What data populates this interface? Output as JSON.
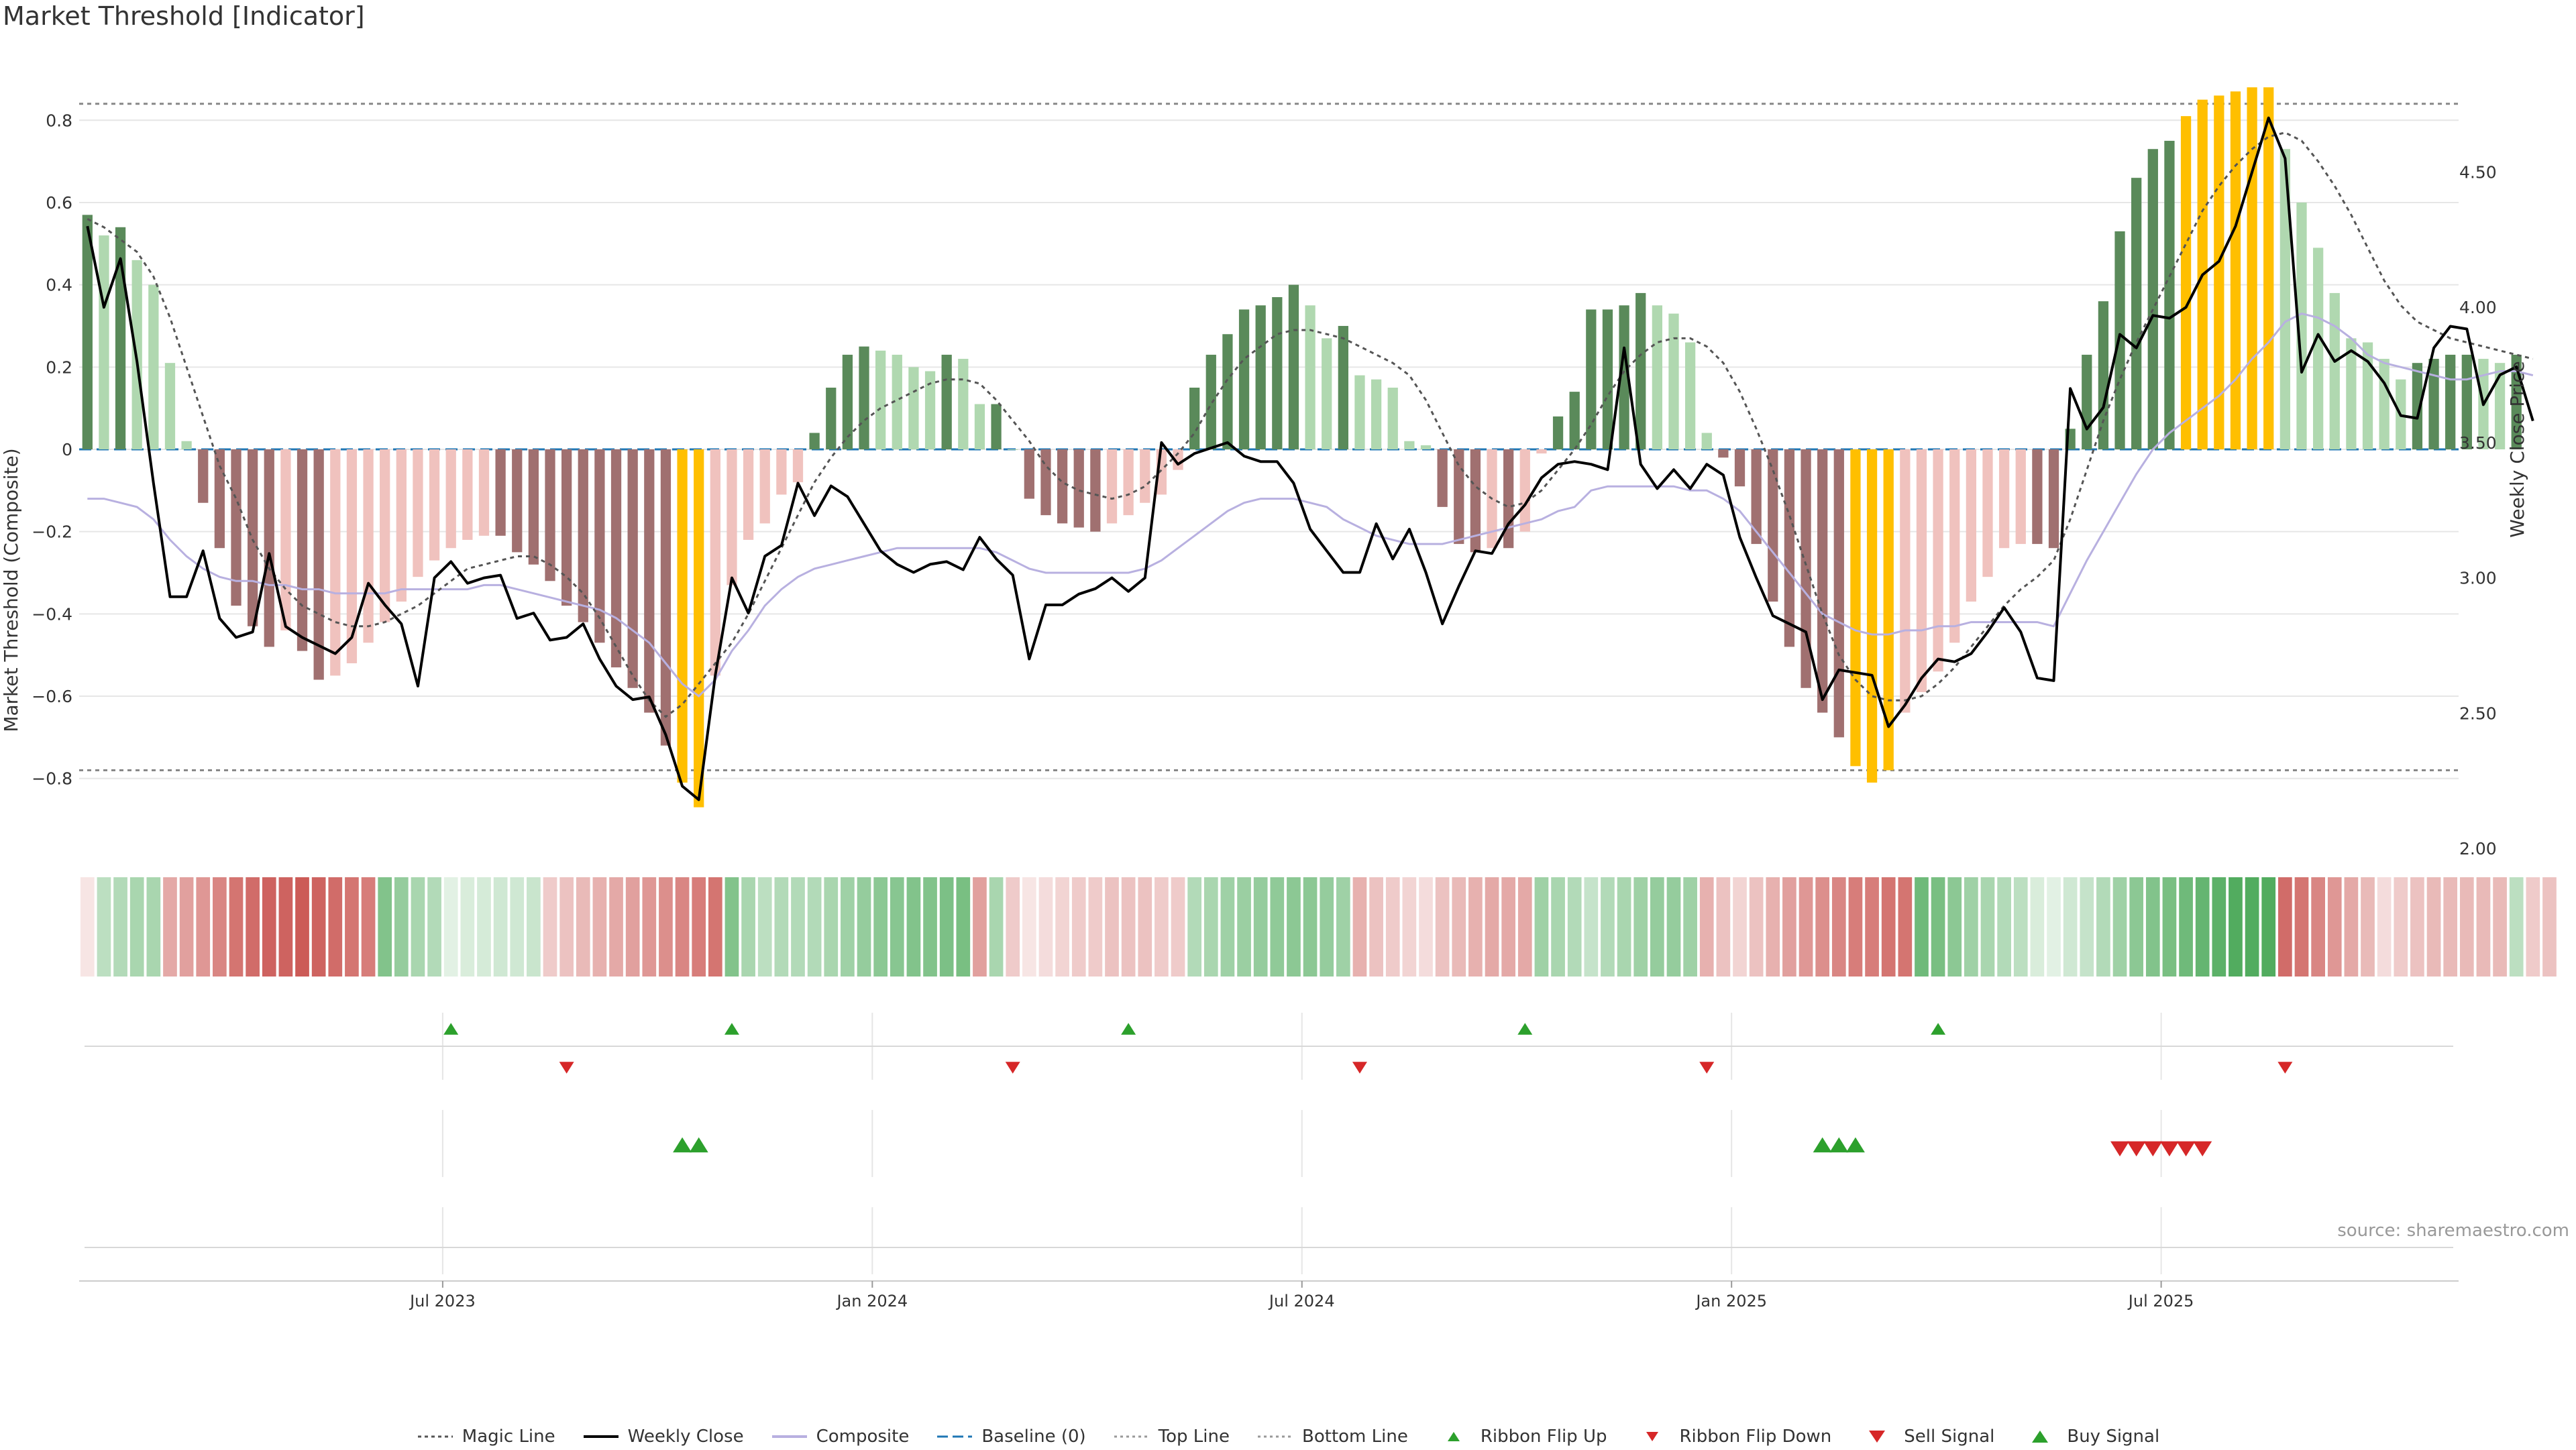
{
  "chart_data": {
    "title": "Market Threshold [Indicator]",
    "type": "bar",
    "ylabel": "Market Threshold (Composite)",
    "y2label": "Weekly Close Price",
    "ylim": [
      -0.97,
      0.97
    ],
    "y2lim": [
      2.0,
      4.95
    ],
    "yticks": [
      "−0.8",
      "−0.6",
      "−0.4",
      "−0.2",
      "0",
      "0.2",
      "0.4",
      "0.6",
      "0.8"
    ],
    "yticks_values": [
      -0.8,
      -0.6,
      -0.4,
      -0.2,
      0,
      0.2,
      0.4,
      0.6,
      0.8
    ],
    "y2ticks": [
      "2.00",
      "2.50",
      "3.00",
      "3.50",
      "4.00",
      "4.50"
    ],
    "y2ticks_values": [
      2.0,
      2.5,
      3.0,
      3.5,
      4.0,
      4.5
    ],
    "xticks": [
      "Jul 2023",
      "Jan 2024",
      "Jul 2024",
      "Jan 2025",
      "Jul 2025"
    ],
    "xticks_week_index": [
      22,
      48,
      74,
      100,
      126
    ],
    "top_line": 0.84,
    "bottom_line": -0.78,
    "baseline": 0,
    "n_weeks": 144,
    "series": [
      {
        "name": "Composite histogram",
        "values": [
          0.57,
          0.52,
          0.54,
          0.46,
          0.4,
          0.21,
          0.02,
          -0.13,
          -0.24,
          -0.38,
          -0.43,
          -0.48,
          -0.44,
          -0.49,
          -0.56,
          -0.55,
          -0.52,
          -0.47,
          -0.42,
          -0.37,
          -0.31,
          -0.27,
          -0.24,
          -0.22,
          -0.21,
          -0.21,
          -0.25,
          -0.28,
          -0.32,
          -0.38,
          -0.42,
          -0.47,
          -0.53,
          -0.58,
          -0.64,
          -0.72,
          -0.81,
          -0.87,
          -0.55,
          -0.33,
          -0.22,
          -0.18,
          -0.11,
          -0.08,
          0.04,
          0.15,
          0.23,
          0.25,
          0.24,
          0.23,
          0.2,
          0.19,
          0.23,
          0.22,
          0.11,
          0.11,
          0.0,
          -0.12,
          -0.16,
          -0.18,
          -0.19,
          -0.2,
          -0.18,
          -0.16,
          -0.13,
          -0.11,
          -0.05,
          0.15,
          0.23,
          0.28,
          0.34,
          0.35,
          0.37,
          0.4,
          0.35,
          0.27,
          0.3,
          0.18,
          0.17,
          0.15,
          0.02,
          0.01,
          -0.14,
          -0.23,
          -0.25,
          -0.24,
          -0.24,
          -0.2,
          -0.01,
          0.08,
          0.14,
          0.34,
          0.34,
          0.35,
          0.38,
          0.35,
          0.33,
          0.26,
          0.04,
          -0.02,
          -0.09,
          -0.23,
          -0.37,
          -0.48,
          -0.58,
          -0.64,
          -0.7,
          -0.77,
          -0.81,
          -0.78,
          -0.64,
          -0.59,
          -0.54,
          -0.47,
          -0.37,
          -0.31,
          -0.24,
          -0.23,
          -0.23,
          -0.24,
          0.05,
          0.23,
          0.36,
          0.53,
          0.66,
          0.73,
          0.75,
          0.81,
          0.85,
          0.86,
          0.87,
          0.88,
          0.88,
          0.73,
          0.6,
          0.49,
          0.38,
          0.27,
          0.26,
          0.22,
          0.17,
          0.21,
          0.22,
          0.23,
          0.23,
          0.22,
          0.21,
          0.23
        ]
      },
      {
        "name": "Weekly Close",
        "values": [
          4.3,
          4.0,
          4.18,
          3.8,
          3.35,
          2.93,
          2.93,
          3.1,
          2.85,
          2.78,
          2.8,
          3.09,
          2.82,
          2.78,
          2.75,
          2.72,
          2.78,
          2.98,
          2.9,
          2.83,
          2.6,
          3.0,
          3.06,
          2.98,
          3.0,
          3.01,
          2.85,
          2.87,
          2.77,
          2.78,
          2.83,
          2.7,
          2.6,
          2.55,
          2.56,
          2.42,
          2.23,
          2.18,
          2.64,
          3.0,
          2.87,
          3.08,
          3.12,
          3.35,
          3.23,
          3.34,
          3.3,
          3.2,
          3.1,
          3.05,
          3.02,
          3.05,
          3.06,
          3.03,
          3.15,
          3.07,
          3.01,
          2.7,
          2.9,
          2.9,
          2.94,
          2.96,
          3.0,
          2.95,
          3.0,
          3.5,
          3.42,
          3.46,
          3.48,
          3.5,
          3.45,
          3.43,
          3.43,
          3.35,
          3.18,
          3.1,
          3.02,
          3.02,
          3.2,
          3.07,
          3.18,
          3.02,
          2.83,
          2.97,
          3.1,
          3.09,
          3.2,
          3.27,
          3.37,
          3.42,
          3.43,
          3.42,
          3.4,
          3.85,
          3.42,
          3.33,
          3.4,
          3.33,
          3.42,
          3.38,
          3.15,
          3.0,
          2.86,
          2.83,
          2.8,
          2.55,
          2.66,
          2.65,
          2.64,
          2.45,
          2.53,
          2.63,
          2.7,
          2.69,
          2.72,
          2.8,
          2.89,
          2.8,
          2.63,
          2.62,
          3.7,
          3.55,
          3.63,
          3.9,
          3.85,
          3.97,
          3.96,
          4.0,
          4.12,
          4.17,
          4.3,
          4.5,
          4.7,
          4.55,
          3.76,
          3.9,
          3.8,
          3.84,
          3.8,
          3.72,
          3.6,
          3.59,
          3.85,
          3.93,
          3.92,
          3.64,
          3.75,
          3.78,
          3.58
        ]
      },
      {
        "name": "Composite",
        "values": [
          -0.12,
          -0.12,
          -0.13,
          -0.14,
          -0.17,
          -0.22,
          -0.26,
          -0.29,
          -0.31,
          -0.32,
          -0.32,
          -0.33,
          -0.33,
          -0.34,
          -0.34,
          -0.35,
          -0.35,
          -0.35,
          -0.35,
          -0.34,
          -0.34,
          -0.34,
          -0.34,
          -0.34,
          -0.33,
          -0.33,
          -0.34,
          -0.35,
          -0.36,
          -0.37,
          -0.38,
          -0.39,
          -0.41,
          -0.44,
          -0.47,
          -0.52,
          -0.57,
          -0.6,
          -0.56,
          -0.49,
          -0.44,
          -0.38,
          -0.34,
          -0.31,
          -0.29,
          -0.28,
          -0.27,
          -0.26,
          -0.25,
          -0.24,
          -0.24,
          -0.24,
          -0.24,
          -0.24,
          -0.24,
          -0.25,
          -0.27,
          -0.29,
          -0.3,
          -0.3,
          -0.3,
          -0.3,
          -0.3,
          -0.3,
          -0.29,
          -0.27,
          -0.24,
          -0.21,
          -0.18,
          -0.15,
          -0.13,
          -0.12,
          -0.12,
          -0.12,
          -0.13,
          -0.14,
          -0.17,
          -0.19,
          -0.21,
          -0.22,
          -0.23,
          -0.23,
          -0.23,
          -0.22,
          -0.21,
          -0.2,
          -0.19,
          -0.18,
          -0.17,
          -0.15,
          -0.14,
          -0.1,
          -0.09,
          -0.09,
          -0.09,
          -0.09,
          -0.09,
          -0.1,
          -0.1,
          -0.12,
          -0.15,
          -0.2,
          -0.25,
          -0.3,
          -0.35,
          -0.4,
          -0.42,
          -0.44,
          -0.45,
          -0.45,
          -0.44,
          -0.44,
          -0.43,
          -0.43,
          -0.42,
          -0.42,
          -0.42,
          -0.42,
          -0.42,
          -0.43,
          -0.35,
          -0.27,
          -0.2,
          -0.13,
          -0.06,
          0.0,
          0.04,
          0.07,
          0.1,
          0.13,
          0.17,
          0.22,
          0.26,
          0.31,
          0.33,
          0.32,
          0.3,
          0.27,
          0.23,
          0.21,
          0.2,
          0.19,
          0.18,
          0.17,
          0.17,
          0.18,
          0.19,
          0.19,
          0.18
        ]
      },
      {
        "name": "Magic Line",
        "values": [
          0.56,
          0.54,
          0.51,
          0.48,
          0.42,
          0.32,
          0.2,
          0.08,
          -0.04,
          -0.12,
          -0.22,
          -0.29,
          -0.34,
          -0.38,
          -0.4,
          -0.42,
          -0.43,
          -0.43,
          -0.42,
          -0.4,
          -0.38,
          -0.35,
          -0.32,
          -0.29,
          -0.28,
          -0.27,
          -0.26,
          -0.26,
          -0.28,
          -0.31,
          -0.35,
          -0.41,
          -0.48,
          -0.55,
          -0.61,
          -0.65,
          -0.62,
          -0.57,
          -0.52,
          -0.47,
          -0.4,
          -0.32,
          -0.24,
          -0.16,
          -0.08,
          -0.02,
          0.03,
          0.07,
          0.1,
          0.12,
          0.14,
          0.16,
          0.17,
          0.17,
          0.16,
          0.12,
          0.07,
          0.02,
          -0.04,
          -0.08,
          -0.1,
          -0.11,
          -0.12,
          -0.11,
          -0.09,
          -0.05,
          -0.01,
          0.04,
          0.11,
          0.17,
          0.22,
          0.25,
          0.28,
          0.29,
          0.29,
          0.28,
          0.27,
          0.25,
          0.23,
          0.21,
          0.18,
          0.12,
          0.04,
          -0.04,
          -0.09,
          -0.12,
          -0.14,
          -0.13,
          -0.1,
          -0.05,
          0.0,
          0.06,
          0.13,
          0.19,
          0.23,
          0.26,
          0.27,
          0.27,
          0.25,
          0.21,
          0.14,
          0.05,
          -0.05,
          -0.16,
          -0.28,
          -0.4,
          -0.5,
          -0.56,
          -0.6,
          -0.61,
          -0.61,
          -0.6,
          -0.57,
          -0.53,
          -0.48,
          -0.43,
          -0.38,
          -0.34,
          -0.31,
          -0.27,
          -0.17,
          -0.05,
          0.07,
          0.17,
          0.26,
          0.34,
          0.42,
          0.5,
          0.58,
          0.64,
          0.69,
          0.73,
          0.76,
          0.77,
          0.75,
          0.7,
          0.64,
          0.57,
          0.49,
          0.41,
          0.35,
          0.31,
          0.29,
          0.27,
          0.26,
          0.25,
          0.24,
          0.23,
          0.22
        ]
      }
    ],
    "ribbon": [
      0.15,
      0.35,
      0.4,
      0.45,
      0.45,
      0.5,
      0.55,
      0.6,
      0.7,
      0.8,
      0.85,
      0.9,
      0.9,
      0.95,
      0.9,
      0.85,
      0.8,
      0.75,
      0.65,
      0.55,
      0.45,
      0.4,
      0.15,
      0.2,
      0.22,
      0.25,
      0.25,
      0.28,
      0.3,
      0.35,
      0.4,
      0.45,
      0.5,
      0.55,
      0.6,
      0.65,
      0.7,
      0.75,
      0.8,
      0.65,
      0.45,
      0.35,
      0.4,
      0.4,
      0.4,
      0.45,
      0.5,
      0.55,
      0.6,
      0.62,
      0.65,
      0.65,
      0.68,
      0.7,
      0.55,
      0.45,
      0.3,
      0.15,
      0.2,
      0.25,
      0.3,
      0.3,
      0.35,
      0.35,
      0.35,
      0.3,
      0.3,
      0.4,
      0.45,
      0.5,
      0.52,
      0.55,
      0.58,
      0.6,
      0.6,
      0.55,
      0.5,
      0.45,
      0.35,
      0.3,
      0.25,
      0.2,
      0.35,
      0.4,
      0.45,
      0.5,
      0.5,
      0.5,
      0.5,
      0.45,
      0.4,
      0.3,
      0.4,
      0.45,
      0.5,
      0.55,
      0.55,
      0.5,
      0.45,
      0.35,
      0.25,
      0.35,
      0.45,
      0.55,
      0.6,
      0.65,
      0.7,
      0.75,
      0.75,
      0.8,
      0.8,
      0.75,
      0.7,
      0.6,
      0.5,
      0.45,
      0.4,
      0.35,
      0.2,
      0.15,
      0.25,
      0.3,
      0.4,
      0.5,
      0.6,
      0.65,
      0.7,
      0.75,
      0.8,
      0.85,
      0.9,
      0.9,
      0.9,
      0.85,
      0.8,
      0.7,
      0.6,
      0.5,
      0.4,
      0.2,
      0.3,
      0.35,
      0.4,
      0.4,
      0.4,
      0.4,
      0.4,
      0.35,
      0.3,
      0.35
    ],
    "ribbon_flip_up": [
      22,
      39,
      63,
      87,
      112
    ],
    "ribbon_flip_down": [
      29,
      56,
      77,
      98,
      133
    ],
    "buy_signal": [
      36,
      37,
      105,
      106,
      107
    ],
    "sell_signal": [
      123,
      124,
      125,
      126,
      127,
      128
    ],
    "colors": {
      "bar_pos_dark": "#5a8a5a",
      "bar_pos_light": "#b0d8b0",
      "bar_neg_dark": "#a07070",
      "bar_neg_light": "#f0c2be",
      "bar_extreme": "#ffbf00",
      "price_line": "#000000",
      "composite_line": "#b8b0e0",
      "magic_line": "#555555",
      "baseline": "#1f77b4",
      "ribbon_up_strong": "#3fa34d",
      "ribbon_down_strong": "#c9524e",
      "flip_up": "#2ca02c",
      "flip_down": "#d62728"
    }
  },
  "legend": [
    {
      "label": "Magic Line",
      "kind": "dotted-dark"
    },
    {
      "label": "Weekly Close",
      "kind": "solid-black"
    },
    {
      "label": "Composite",
      "kind": "solid-lavender"
    },
    {
      "label": "Baseline (0)",
      "kind": "dashed-blue"
    },
    {
      "label": "Top Line",
      "kind": "dotted-gray"
    },
    {
      "label": "Bottom Line",
      "kind": "dotted-gray"
    },
    {
      "label": "Ribbon Flip Up",
      "kind": "tri-up-small"
    },
    {
      "label": "Ribbon Flip Down",
      "kind": "tri-down-small"
    },
    {
      "label": "Sell Signal",
      "kind": "tri-down-large"
    },
    {
      "label": "Buy Signal",
      "kind": "tri-up-large"
    }
  ],
  "source": "source: sharemaestro.com"
}
